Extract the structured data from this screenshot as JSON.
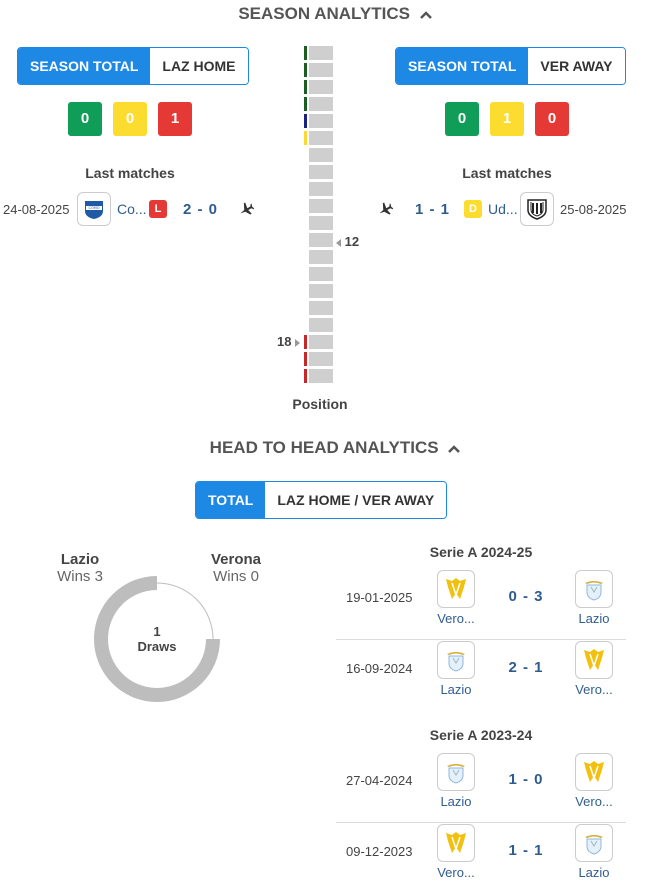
{
  "season": {
    "title": "SEASON ANALYTICS",
    "left": {
      "tabs": [
        "SEASON TOTAL",
        "LAZ HOME"
      ],
      "record": {
        "wins": "0",
        "draws": "0",
        "losses": "1"
      },
      "last_matches_label": "Last matches",
      "match": {
        "date": "24-08-2025",
        "opponent": "Co...",
        "result": "L",
        "score": "2 - 0",
        "venue_icon": "plane-icon"
      }
    },
    "right": {
      "tabs": [
        "SEASON TOTAL",
        "VER AWAY"
      ],
      "record": {
        "wins": "0",
        "draws": "1",
        "losses": "0"
      },
      "last_matches_label": "Last matches",
      "match": {
        "date": "25-08-2025",
        "opponent": "Ud...",
        "result": "D",
        "score": "1 - 1",
        "venue_icon": "plane-icon"
      }
    },
    "position": {
      "label": "Position",
      "total_rows": 20,
      "marker_right": "12",
      "marker_left": "18",
      "marker_right_row": 12,
      "marker_left_row": 18,
      "zone_colors": [
        "#1b5e20",
        "#1b5e20",
        "#1b5e20",
        "#1b5e20",
        "#1a237e",
        "#fdd835",
        "",
        "",
        "",
        "",
        "",
        "",
        "",
        "",
        "",
        "",
        "",
        "#c62828",
        "#c62828",
        "#c62828"
      ]
    }
  },
  "h2h": {
    "title": "HEAD TO HEAD ANALYTICS",
    "tabs": [
      "TOTAL",
      "LAZ HOME / VER AWAY"
    ],
    "left_team": {
      "name": "Lazio",
      "sub": "Wins 3"
    },
    "right_team": {
      "name": "Verona",
      "sub": "Wins 0"
    },
    "draws": {
      "count": "1",
      "label": "Draws"
    },
    "donut": {
      "wins_left": 3,
      "wins_right": 0,
      "draws": 1,
      "color_left": "#bdbdbd",
      "color_draw": "#ffffff"
    },
    "competitions": [
      {
        "name": "Serie A 2024-25",
        "matches": [
          {
            "date": "19-01-2025",
            "home": "Vero...",
            "away": "Lazio",
            "score": "0 - 3",
            "home_logo": "verona",
            "away_logo": "lazio"
          },
          {
            "date": "16-09-2024",
            "home": "Lazio",
            "away": "Vero...",
            "score": "2 - 1",
            "home_logo": "lazio",
            "away_logo": "verona"
          }
        ]
      },
      {
        "name": "Serie A 2023-24",
        "matches": [
          {
            "date": "27-04-2024",
            "home": "Lazio",
            "away": "Vero...",
            "score": "1 - 0",
            "home_logo": "lazio",
            "away_logo": "verona"
          },
          {
            "date": "09-12-2023",
            "home": "Vero...",
            "away": "Lazio",
            "score": "1 - 1",
            "home_logo": "verona",
            "away_logo": "lazio"
          }
        ]
      }
    ]
  },
  "colors": {
    "accent": "#1e88e5",
    "win": "#0f9d58",
    "draw": "#fbdc2f",
    "loss": "#e53935",
    "score": "#2f5c8f"
  }
}
